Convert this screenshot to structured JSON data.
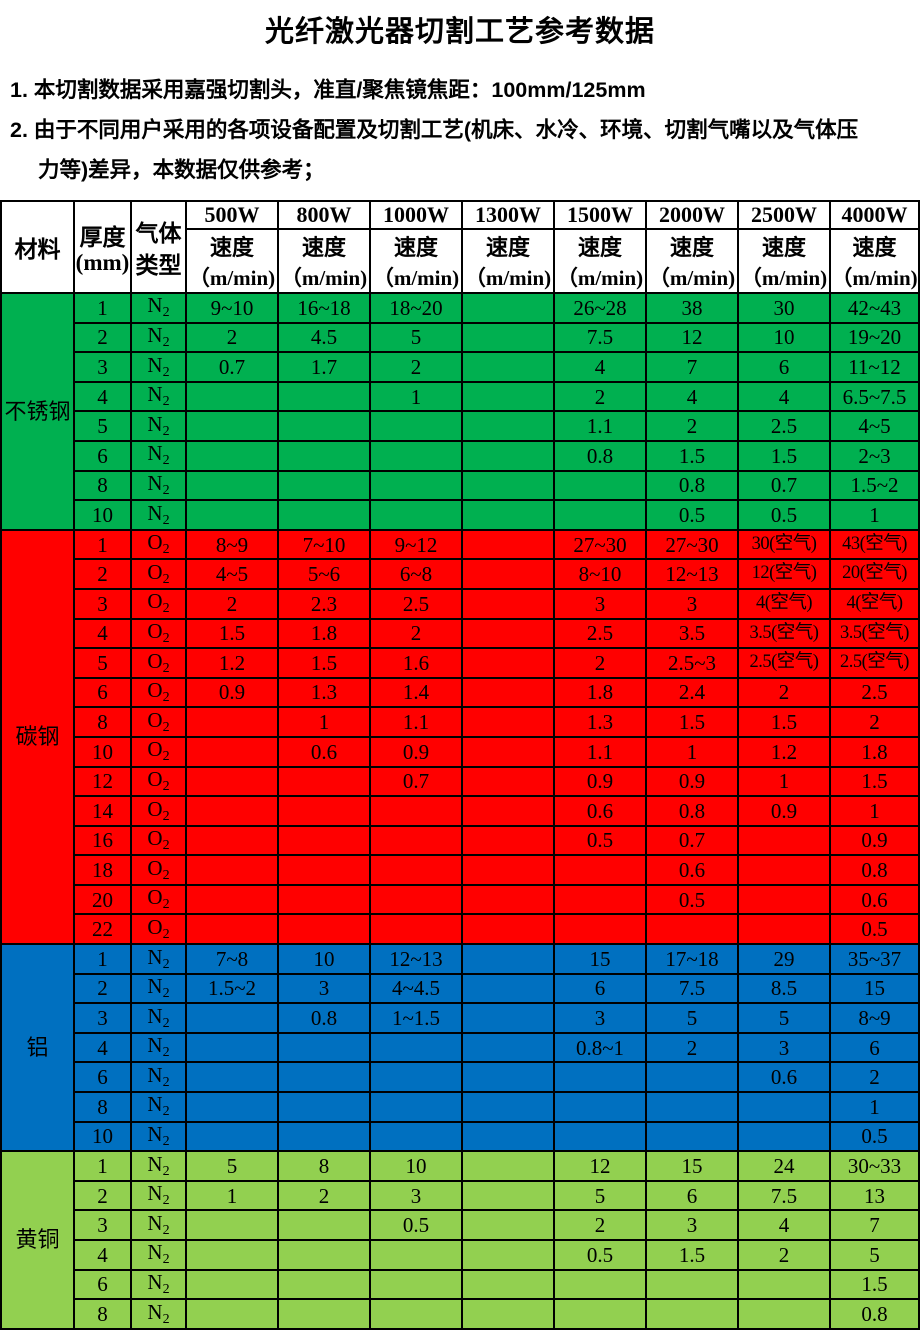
{
  "title": "光纤激光器切割工艺参考数据",
  "notes": [
    {
      "text": "1. 本切割数据采用嘉强切割头，准直/聚焦镜焦距：100mm/125mm",
      "indent": false
    },
    {
      "text": "2. 由于不同用户采用的各项设备配置及切割工艺(机床、水冷、环境、切割气嘴以及气体压",
      "indent": false
    },
    {
      "text": "力等)差异，本数据仅供参考；",
      "indent": true
    }
  ],
  "table": {
    "header": {
      "material": "材料",
      "thickness_line1": "厚度",
      "thickness_line2": "(mm)",
      "gas_line1": "气体",
      "gas_line2": "类型",
      "speed_line1": "速度",
      "speed_line2": "（m/min)",
      "powers": [
        "500W",
        "800W",
        "1000W",
        "1300W",
        "1500W",
        "2000W",
        "2500W",
        "4000W"
      ]
    },
    "sections": [
      {
        "material": "不锈钢",
        "color": "#00B050",
        "rows": [
          {
            "t": "1",
            "gas": "N2",
            "v": [
              "9~10",
              "16~18",
              "18~20",
              "",
              "26~28",
              "38",
              "30",
              "42~43"
            ]
          },
          {
            "t": "2",
            "gas": "N2",
            "v": [
              "2",
              "4.5",
              "5",
              "",
              "7.5",
              "12",
              "10",
              "19~20"
            ]
          },
          {
            "t": "3",
            "gas": "N2",
            "v": [
              "0.7",
              "1.7",
              "2",
              "",
              "4",
              "7",
              "6",
              "11~12"
            ]
          },
          {
            "t": "4",
            "gas": "N2",
            "v": [
              "",
              "",
              "1",
              "",
              "2",
              "4",
              "4",
              "6.5~7.5"
            ]
          },
          {
            "t": "5",
            "gas": "N2",
            "v": [
              "",
              "",
              "",
              "",
              "1.1",
              "2",
              "2.5",
              "4~5"
            ]
          },
          {
            "t": "6",
            "gas": "N2",
            "v": [
              "",
              "",
              "",
              "",
              "0.8",
              "1.5",
              "1.5",
              "2~3"
            ]
          },
          {
            "t": "8",
            "gas": "N2",
            "v": [
              "",
              "",
              "",
              "",
              "",
              "0.8",
              "0.7",
              "1.5~2"
            ]
          },
          {
            "t": "10",
            "gas": "N2",
            "v": [
              "",
              "",
              "",
              "",
              "",
              "0.5",
              "0.5",
              "1"
            ]
          }
        ]
      },
      {
        "material": "碳钢",
        "color": "#FF0000",
        "rows": [
          {
            "t": "1",
            "gas": "O2",
            "v": [
              "8~9",
              "7~10",
              "9~12",
              "",
              "27~30",
              "27~30",
              "30(空气)",
              "43(空气)"
            ]
          },
          {
            "t": "2",
            "gas": "O2",
            "v": [
              "4~5",
              "5~6",
              "6~8",
              "",
              "8~10",
              "12~13",
              "12(空气)",
              "20(空气)"
            ]
          },
          {
            "t": "3",
            "gas": "O2",
            "v": [
              "2",
              "2.3",
              "2.5",
              "",
              "3",
              "3",
              "4(空气)",
              "4(空气)"
            ]
          },
          {
            "t": "4",
            "gas": "O2",
            "v": [
              "1.5",
              "1.8",
              "2",
              "",
              "2.5",
              "3.5",
              "3.5(空气)",
              "3.5(空气)"
            ]
          },
          {
            "t": "5",
            "gas": "O2",
            "v": [
              "1.2",
              "1.5",
              "1.6",
              "",
              "2",
              "2.5~3",
              "2.5(空气)",
              "2.5(空气)"
            ]
          },
          {
            "t": "6",
            "gas": "O2",
            "v": [
              "0.9",
              "1.3",
              "1.4",
              "",
              "1.8",
              "2.4",
              "2",
              "2.5"
            ]
          },
          {
            "t": "8",
            "gas": "O2",
            "v": [
              "",
              "1",
              "1.1",
              "",
              "1.3",
              "1.5",
              "1.5",
              "2"
            ]
          },
          {
            "t": "10",
            "gas": "O2",
            "v": [
              "",
              "0.6",
              "0.9",
              "",
              "1.1",
              "1",
              "1.2",
              "1.8"
            ]
          },
          {
            "t": "12",
            "gas": "O2",
            "v": [
              "",
              "",
              "0.7",
              "",
              "0.9",
              "0.9",
              "1",
              "1.5"
            ]
          },
          {
            "t": "14",
            "gas": "O2",
            "v": [
              "",
              "",
              "",
              "",
              "0.6",
              "0.8",
              "0.9",
              "1"
            ]
          },
          {
            "t": "16",
            "gas": "O2",
            "v": [
              "",
              "",
              "",
              "",
              "0.5",
              "0.7",
              "",
              "0.9"
            ]
          },
          {
            "t": "18",
            "gas": "O2",
            "v": [
              "",
              "",
              "",
              "",
              "",
              "0.6",
              "",
              "0.8"
            ]
          },
          {
            "t": "20",
            "gas": "O2",
            "v": [
              "",
              "",
              "",
              "",
              "",
              "0.5",
              "",
              "0.6"
            ]
          },
          {
            "t": "22",
            "gas": "O2",
            "v": [
              "",
              "",
              "",
              "",
              "",
              "",
              "",
              "0.5"
            ]
          }
        ]
      },
      {
        "material": "铝",
        "color": "#0070C0",
        "rows": [
          {
            "t": "1",
            "gas": "N2",
            "v": [
              "7~8",
              "10",
              "12~13",
              "",
              "15",
              "17~18",
              "29",
              "35~37"
            ]
          },
          {
            "t": "2",
            "gas": "N2",
            "v": [
              "1.5~2",
              "3",
              "4~4.5",
              "",
              "6",
              "7.5",
              "8.5",
              "15"
            ]
          },
          {
            "t": "3",
            "gas": "N2",
            "v": [
              "",
              "0.8",
              "1~1.5",
              "",
              "3",
              "5",
              "5",
              "8~9"
            ]
          },
          {
            "t": "4",
            "gas": "N2",
            "v": [
              "",
              "",
              "",
              "",
              "0.8~1",
              "2",
              "3",
              "6"
            ]
          },
          {
            "t": "6",
            "gas": "N2",
            "v": [
              "",
              "",
              "",
              "",
              "",
              "",
              "0.6",
              "2"
            ]
          },
          {
            "t": "8",
            "gas": "N2",
            "v": [
              "",
              "",
              "",
              "",
              "",
              "",
              "",
              "1"
            ]
          },
          {
            "t": "10",
            "gas": "N2",
            "v": [
              "",
              "",
              "",
              "",
              "",
              "",
              "",
              "0.5"
            ]
          }
        ]
      },
      {
        "material": "黄铜",
        "color": "#92D050",
        "rows": [
          {
            "t": "1",
            "gas": "N2",
            "v": [
              "5",
              "8",
              "10",
              "",
              "12",
              "15",
              "24",
              "30~33"
            ]
          },
          {
            "t": "2",
            "gas": "N2",
            "v": [
              "1",
              "2",
              "3",
              "",
              "5",
              "6",
              "7.5",
              "13"
            ]
          },
          {
            "t": "3",
            "gas": "N2",
            "v": [
              "",
              "",
              "0.5",
              "",
              "2",
              "3",
              "4",
              "7"
            ]
          },
          {
            "t": "4",
            "gas": "N2",
            "v": [
              "",
              "",
              "",
              "",
              "0.5",
              "1.5",
              "2",
              "5"
            ]
          },
          {
            "t": "6",
            "gas": "N2",
            "v": [
              "",
              "",
              "",
              "",
              "",
              "",
              "",
              "1.5"
            ]
          },
          {
            "t": "8",
            "gas": "N2",
            "v": [
              "",
              "",
              "",
              "",
              "",
              "",
              "",
              "0.8"
            ]
          }
        ]
      }
    ]
  }
}
